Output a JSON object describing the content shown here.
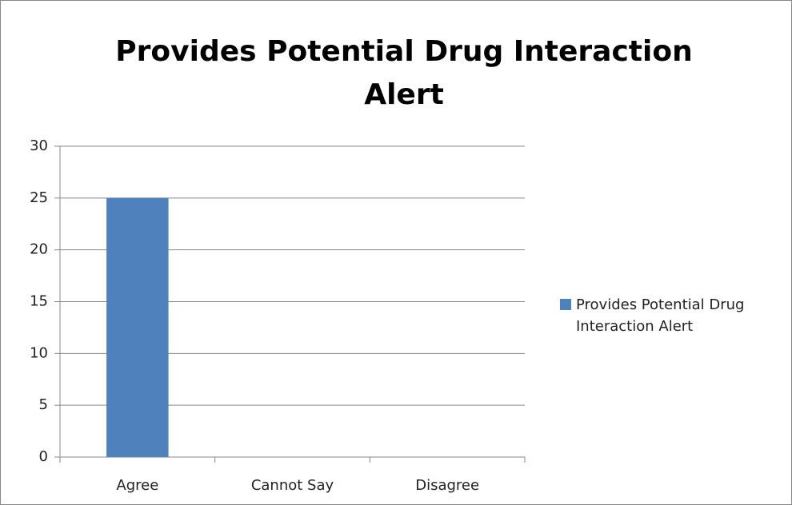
{
  "chart_data": {
    "type": "bar",
    "title": "Provides Potential Drug Interaction Alert",
    "categories": [
      "Agree",
      "Cannot Say",
      "Disagree"
    ],
    "series": [
      {
        "name": "Provides Potential Drug Interaction Alert",
        "color": "#4f81bd",
        "values": [
          25,
          0,
          0
        ]
      }
    ],
    "ylim": [
      0,
      30
    ],
    "yticks": [
      0,
      5,
      10,
      15,
      20,
      25,
      30
    ],
    "grid": true,
    "legend": "right"
  }
}
